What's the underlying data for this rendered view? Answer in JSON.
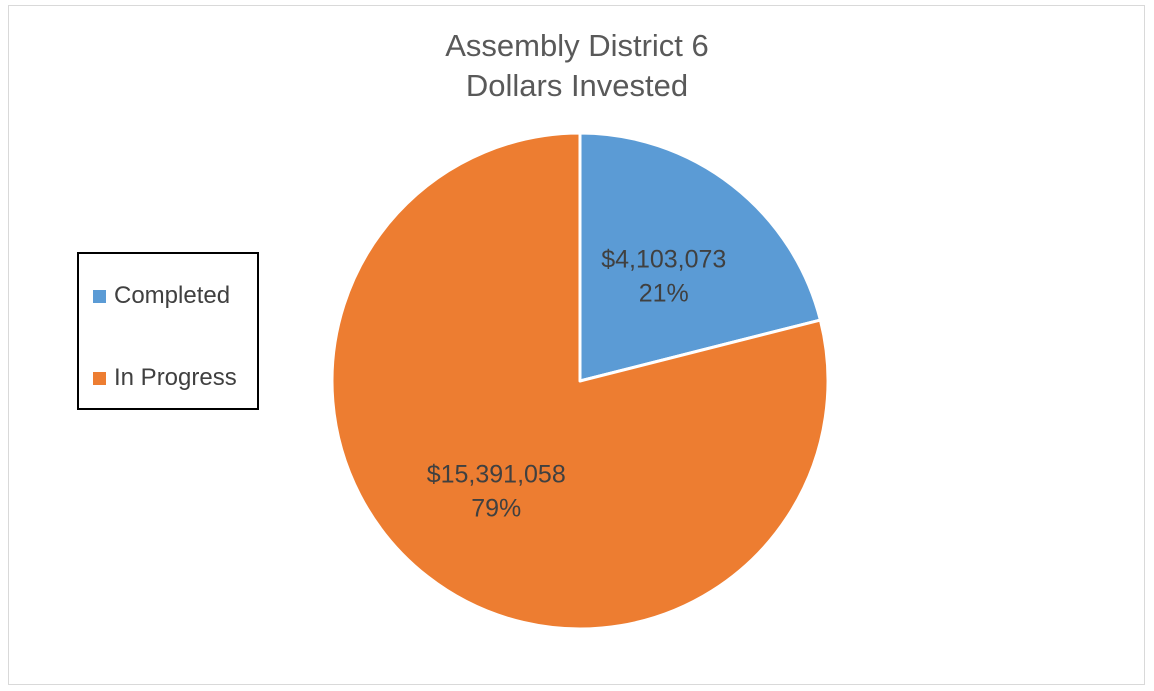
{
  "chart_data": {
    "type": "pie",
    "title_lines": [
      "Assembly District 6",
      "Dollars Invested"
    ],
    "series": [
      {
        "name": "Dollars Invested",
        "slices": [
          {
            "label": "Completed",
            "value": 4103073,
            "value_label": "$4,103,073",
            "percent_label": "21%",
            "color": "#5b9bd5"
          },
          {
            "label": "In Progress",
            "value": 15391058,
            "value_label": "$15,391,058",
            "percent_label": "79%",
            "color": "#ed7d31"
          }
        ]
      }
    ],
    "legend_placement": "left"
  },
  "legend": {
    "items": [
      {
        "label": "Completed",
        "color": "#5b9bd5"
      },
      {
        "label": "In Progress",
        "color": "#ed7d31"
      }
    ]
  }
}
